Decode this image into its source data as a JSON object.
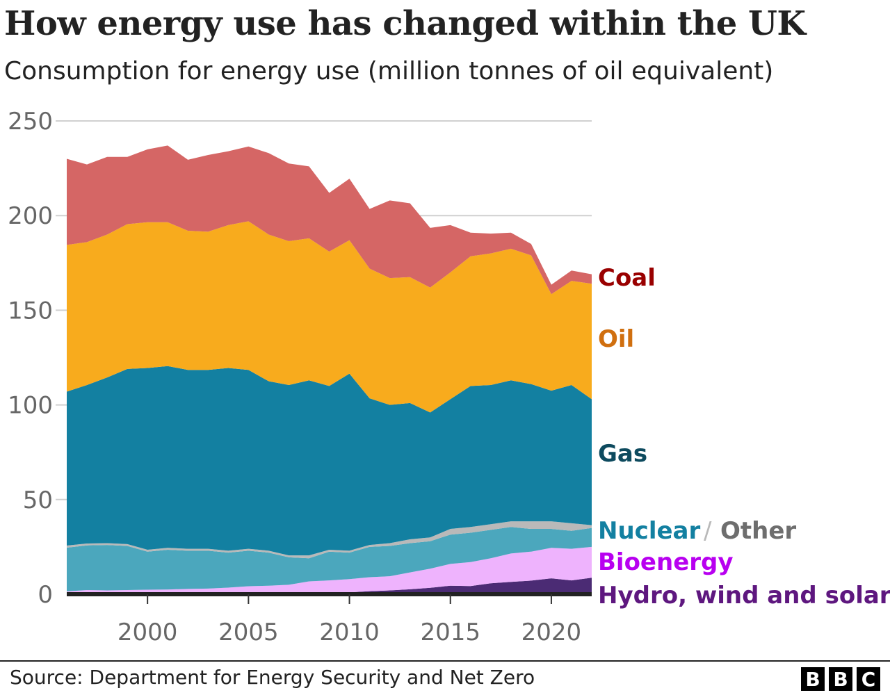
{
  "title": "How energy use has changed within the UK",
  "subtitle": "Consumption for energy use (million tonnes of oil equivalent)",
  "source": "Source: Department for Energy Security and Net Zero",
  "logo": [
    "B",
    "B",
    "C"
  ],
  "chart_data": {
    "type": "area",
    "stacked": true,
    "title": "How energy use has changed within the UK",
    "ylabel": "Consumption for energy use (million tonnes of oil equivalent)",
    "ylim": [
      0,
      250
    ],
    "yticks": [
      0,
      50,
      100,
      150,
      200,
      250
    ],
    "xticks": [
      2000,
      2005,
      2010,
      2015,
      2020
    ],
    "grid": true,
    "legend": "right-inline",
    "x": [
      1996,
      1997,
      1998,
      1999,
      2000,
      2001,
      2002,
      2003,
      2004,
      2005,
      2006,
      2007,
      2008,
      2009,
      2010,
      2011,
      2012,
      2013,
      2014,
      2015,
      2016,
      2017,
      2018,
      2019,
      2020,
      2021,
      2022
    ],
    "series": [
      {
        "name": "Hydro, wind and solar",
        "color": "#4b2b74",
        "label_color": "#5e177f",
        "values": [
          0.4,
          0.4,
          0.4,
          0.5,
          0.5,
          0.5,
          0.5,
          0.5,
          0.5,
          0.6,
          0.6,
          0.7,
          0.8,
          1,
          1,
          1.6,
          2,
          2.6,
          3.4,
          4.5,
          4.3,
          5.8,
          6.5,
          7.2,
          8.4,
          7.3,
          8.7
        ]
      },
      {
        "name": "Bioenergy",
        "color": "#eeb3fd",
        "label_color": "#b800f0",
        "values": [
          1.1,
          1.8,
          1.6,
          1.7,
          1.9,
          2.0,
          2.3,
          2.5,
          3.0,
          3.6,
          3.9,
          4.3,
          6.0,
          6.3,
          7.0,
          7.4,
          7.5,
          8.9,
          10.1,
          11.5,
          12.7,
          13.2,
          15.0,
          15.3,
          16.1,
          16.7,
          16.3
        ]
      },
      {
        "name": "Nuclear",
        "color": "#4ba7bd",
        "label_color": "#1380a1",
        "values": [
          23.1,
          23.6,
          24.0,
          23.3,
          20.1,
          21.0,
          20.2,
          20.0,
          18.5,
          18.8,
          17.5,
          14.5,
          12.2,
          15.2,
          14.0,
          16.0,
          16.0,
          15.5,
          14.5,
          15.5,
          15.5,
          15.0,
          14.0,
          12.0,
          10.0,
          9.5,
          10.0
        ]
      },
      {
        "name": "Other",
        "color": "#b9b9b9",
        "label_color": "#6e6e6e",
        "values": [
          1.1,
          1.0,
          1.0,
          1.0,
          1.0,
          1.0,
          1.0,
          1.0,
          1.0,
          1.0,
          1.0,
          1.0,
          1.5,
          1.0,
          1.0,
          1.0,
          1.5,
          2.0,
          2.0,
          3.0,
          3.0,
          3.0,
          3.0,
          4.0,
          4.0,
          4.0,
          1.5
        ]
      },
      {
        "name": "Gas",
        "color": "#1380a1",
        "label_color": "#0d4a5e",
        "values": [
          81.3,
          83.7,
          87.5,
          92.5,
          96.0,
          96.0,
          94.5,
          94.5,
          96.5,
          94.5,
          89.5,
          90.0,
          92.5,
          86.5,
          93.5,
          77.5,
          73.0,
          72.0,
          66.0,
          68.5,
          74.5,
          73.5,
          74.5,
          72.5,
          69.0,
          73.0,
          66.5
        ]
      },
      {
        "name": "Oil",
        "color": "#f8ab1d",
        "label_color": "#d06f0f",
        "values": [
          77.5,
          75.5,
          75.5,
          76.5,
          77.0,
          76.0,
          73.5,
          73.0,
          75.5,
          78.5,
          77.5,
          76.0,
          75.0,
          71.0,
          70.5,
          68.5,
          67.0,
          66.5,
          66.0,
          67.0,
          68.5,
          69.5,
          69.5,
          68.0,
          51.0,
          55.0,
          61.0
        ]
      },
      {
        "name": "Coal",
        "color": "#d56665",
        "label_color": "#990000",
        "values": [
          45.5,
          41,
          41,
          35.5,
          38.5,
          40.5,
          37.5,
          40.5,
          39,
          39.5,
          43,
          41,
          38,
          31,
          32.5,
          31.5,
          41,
          39,
          31.5,
          25,
          12.5,
          10.5,
          8.5,
          6,
          5,
          5.5,
          5
        ]
      }
    ]
  }
}
